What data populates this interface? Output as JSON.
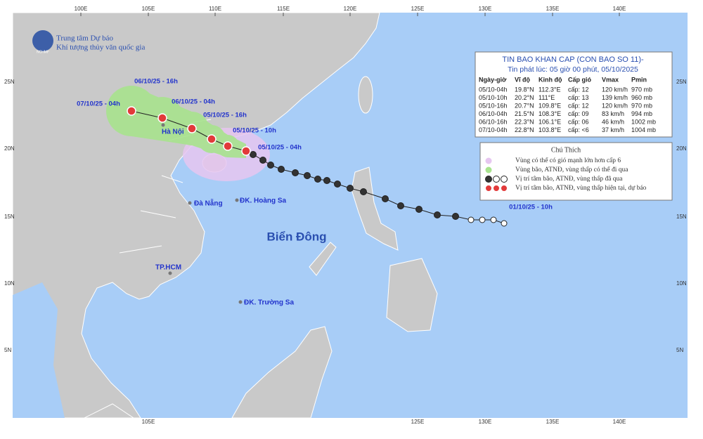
{
  "header": {
    "org_line1": "Trung tâm Dự báo",
    "org_line2": "Khí tượng thủy văn quốc gia",
    "logo": "NCHMF"
  },
  "axes": {
    "top": [
      "100E",
      "105E",
      "110E",
      "115E",
      "120E",
      "125E",
      "130E",
      "135E",
      "140E"
    ],
    "bottom": [
      "105E",
      "125E",
      "130E",
      "135E",
      "140E"
    ],
    "left": [
      "25N",
      "20N",
      "15N",
      "10N",
      "5N"
    ],
    "right": [
      "25N",
      "20N",
      "15N",
      "10N",
      "5N"
    ]
  },
  "bulletin": {
    "title": "TIN BAO KHAN CAP (CON BAO SO 11)-",
    "issued": "Tin phát lúc: 05 giờ 00 phút, 05/10/2025",
    "columns": [
      "Ngày-giờ",
      "Vĩ độ",
      "Kinh độ",
      "Cấp gió",
      "Vmax",
      "Pmin"
    ],
    "rows": [
      [
        "05/10-04h",
        "19.8°N",
        "112.3°E",
        "cấp: 12",
        "120 km/h",
        "970 mb"
      ],
      [
        "05/10-10h",
        "20.2°N",
        "111°E",
        "cấp: 13",
        "139 km/h",
        "960 mb"
      ],
      [
        "05/10-16h",
        "20.7°N",
        "109.8°E",
        "cấp: 12",
        "120 km/h",
        "970 mb"
      ],
      [
        "06/10-04h",
        "21.5°N",
        "108.3°E",
        "cấp: 09",
        "83 km/h",
        "994 mb"
      ],
      [
        "06/10-16h",
        "22.3°N",
        "106.1°E",
        "cấp: 06",
        "46 km/h",
        "1002 mb"
      ],
      [
        "07/10-04h",
        "22.8°N",
        "103.8°E",
        "cấp: <6",
        "37 km/h",
        "1004 mb"
      ]
    ]
  },
  "legend": {
    "title": "Chú Thích",
    "items": [
      "Vùng có thể có gió mạnh lớn hơn cấp 6",
      "Vùng bão, ATNĐ, vùng thấp có thể đi qua",
      "Vị trí tâm bão, ATNĐ, vùng thấp đã qua",
      "Vị trí tâm bão, ATNĐ, vùng thấp hiện tại, dự báo"
    ]
  },
  "track_labels": [
    "06/10/25 - 16h",
    "07/10/25 - 04h",
    "06/10/25 - 04h",
    "05/10/25 - 16h",
    "05/10/25 - 10h",
    "05/10/25 - 04h",
    "01/10/25 - 10h"
  ],
  "places": [
    "Hà Nội",
    "Đà Nẵng",
    "ĐK. Hoàng Sa",
    "TP.HCM",
    "ĐK. Trường Sa"
  ],
  "sea_name": "Biển Đông"
}
